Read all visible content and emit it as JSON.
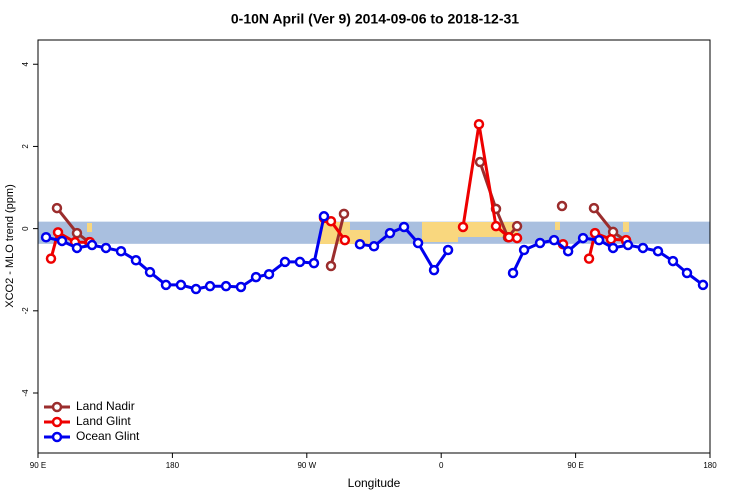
{
  "chart_data": {
    "type": "line",
    "title": "0-10N April (Ver 9)   2014-09-06 to 2018-12-31",
    "xlabel": "Longitude",
    "ylabel": "XCO2 - MLO trend (ppm)",
    "xlim": [
      90,
      540
    ],
    "ylim": [
      -5.46,
      4.59
    ],
    "xticks": [
      {
        "value": 90,
        "label": "90 E"
      },
      180,
      {
        "value": 270,
        "label": "90 W"
      },
      {
        "value": 360,
        "label": "0"
      },
      {
        "value": 450,
        "label": "90 E"
      },
      {
        "value": 540,
        "label": "180"
      }
    ],
    "yticks": [
      -4,
      -2,
      0,
      2,
      4
    ],
    "band": {
      "ymin": -0.37,
      "ymax": 0.17,
      "color": "#a9bfdf"
    },
    "legend": "bottom-left",
    "series": [
      {
        "name": "Land Nadir",
        "color": "#9b2d2d",
        "x": [
          102.7,
          116.1,
          124.2,
          null,
          286.2,
          294.9,
          null,
          386.0,
          396.7,
          404.7,
          410.8,
          null,
          440.9,
          null,
          462.3,
          475.1,
          483.8
        ],
        "values": [
          0.5,
          -0.11,
          -0.33,
          null,
          -0.91,
          0.36,
          null,
          1.62,
          0.48,
          -0.21,
          0.06,
          null,
          0.55,
          null,
          0.5,
          -0.08,
          -0.3
        ]
      },
      {
        "name": "Land Glint",
        "color": "#ee0000",
        "x": [
          98.7,
          103.4,
          114.8,
          124.8,
          null,
          281.5,
          286.2,
          295.5,
          null,
          374.6,
          385.3,
          396.7,
          405.4,
          410.8,
          null,
          441.6,
          null,
          459.0,
          463.0,
          473.7,
          483.8
        ],
        "values": [
          -0.73,
          -0.09,
          -0.33,
          -0.33,
          null,
          0.26,
          0.18,
          -0.28,
          null,
          0.04,
          2.54,
          0.06,
          -0.21,
          -0.23,
          null,
          -0.38,
          null,
          -0.73,
          -0.11,
          -0.26,
          -0.28
        ]
      },
      {
        "name": "Ocean Glint",
        "color": "#0000ee",
        "x": [
          95.4,
          106.1,
          116.1,
          126.2,
          135.5,
          145.6,
          155.6,
          165.0,
          175.7,
          185.7,
          195.8,
          205.2,
          215.9,
          225.9,
          236.0,
          244.7,
          255.4,
          265.4,
          274.8,
          281.5,
          null,
          305.6,
          315.0,
          325.7,
          335.1,
          344.5,
          355.2,
          364.6,
          null,
          408.1,
          415.5,
          426.2,
          435.6,
          445.0,
          455.0,
          465.7,
          475.1,
          485.1,
          495.1,
          505.2,
          515.2,
          524.6,
          535.3
        ],
        "values": [
          -0.21,
          -0.3,
          -0.47,
          -0.4,
          -0.47,
          -0.55,
          -0.77,
          -1.06,
          -1.37,
          -1.37,
          -1.47,
          -1.4,
          -1.4,
          -1.42,
          -1.18,
          -1.11,
          -0.81,
          -0.81,
          -0.84,
          0.3,
          null,
          -0.38,
          -0.43,
          -0.11,
          0.04,
          -0.35,
          -1.01,
          -0.52,
          null,
          -1.08,
          -0.52,
          -0.35,
          -0.28,
          -0.55,
          -0.23,
          -0.28,
          -0.47,
          -0.4,
          -0.47,
          -0.55,
          -0.79,
          -1.08,
          -1.37
        ]
      }
    ]
  }
}
